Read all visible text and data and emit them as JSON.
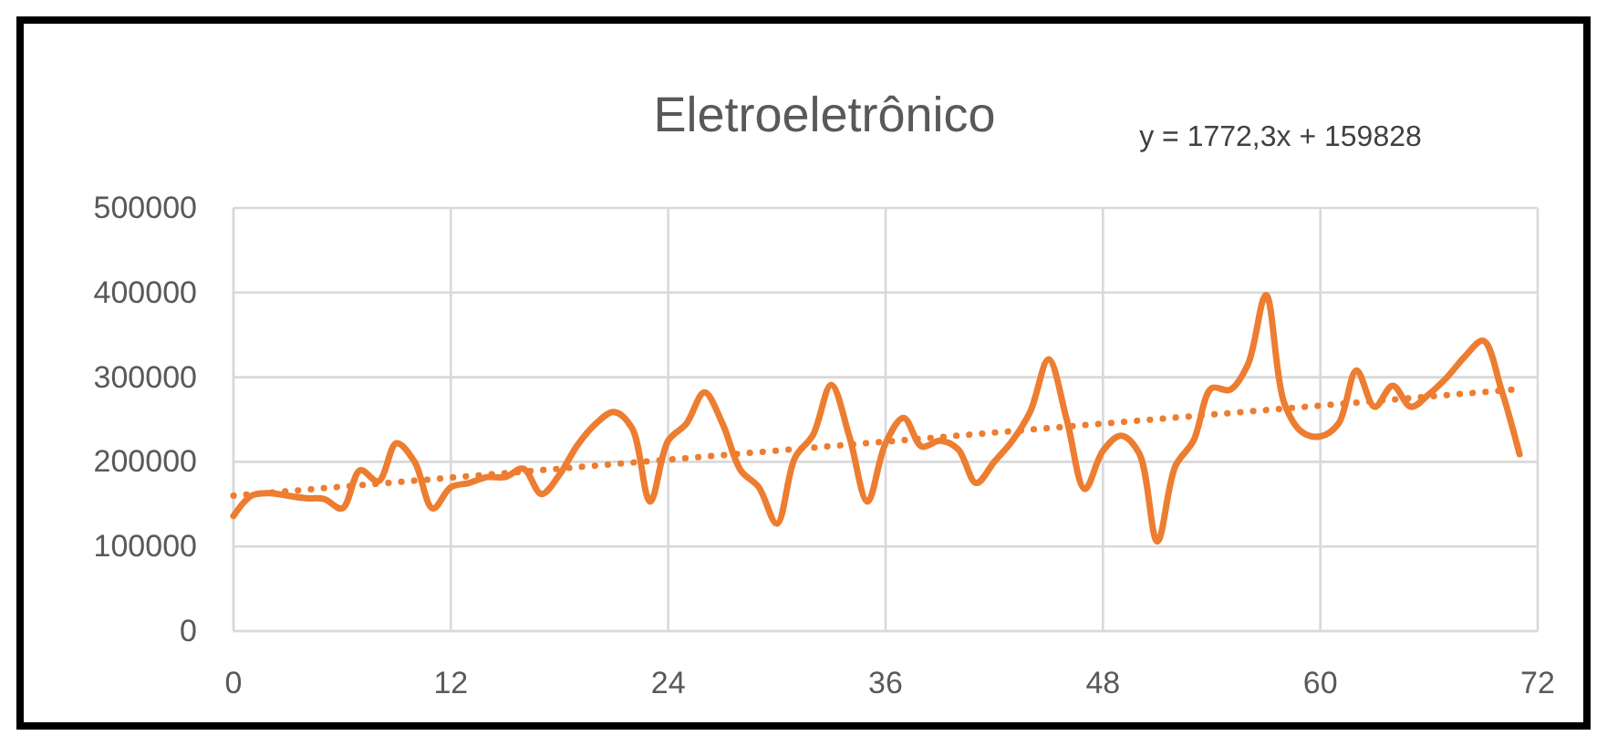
{
  "chart_data": {
    "type": "line",
    "title": "Eletroeletrônico",
    "annotations": [
      "y = 1772,3x + 159828"
    ],
    "x": [
      0,
      1,
      2,
      3,
      4,
      5,
      6,
      7,
      8,
      9,
      10,
      11,
      12,
      13,
      14,
      15,
      16,
      17,
      18,
      19,
      20,
      21,
      22,
      23,
      24,
      25,
      26,
      27,
      28,
      29,
      30,
      31,
      32,
      33,
      34,
      35,
      36,
      37,
      38,
      39,
      40,
      41,
      42,
      43,
      44,
      45,
      46,
      47,
      48,
      49,
      50,
      51,
      52,
      53,
      54,
      55,
      56,
      57,
      58,
      59,
      60,
      61,
      62,
      63,
      64,
      65,
      66,
      67,
      68,
      69,
      70,
      71
    ],
    "series": [
      {
        "color": "#ed7d31",
        "line_style": "solid",
        "values": [
          136000,
          160000,
          163000,
          160000,
          157000,
          156000,
          145000,
          190000,
          177000,
          222000,
          200000,
          145000,
          170000,
          175000,
          182000,
          182000,
          192000,
          162000,
          185000,
          220000,
          245000,
          259000,
          240000,
          153000,
          225000,
          245000,
          282000,
          245000,
          190000,
          170000,
          127000,
          205000,
          232000,
          291000,
          230000,
          153000,
          222000,
          252000,
          218000,
          225000,
          215000,
          175000,
          200000,
          225000,
          260000,
          321000,
          250000,
          168000,
          213000,
          231000,
          210000,
          106000,
          195000,
          225000,
          287000,
          285000,
          315000,
          397000,
          270000,
          235000,
          230000,
          245000,
          308000,
          265000,
          290000,
          265000,
          280000,
          300000,
          325000,
          343000,
          285000,
          209000
        ]
      },
      {
        "color": "#ed7d31",
        "line_style": "dotted",
        "x": [
          0,
          71
        ],
        "values": [
          160000,
          286000
        ]
      }
    ],
    "xlim": [
      0,
      72
    ],
    "xticks": [
      0,
      12,
      24,
      36,
      48,
      60,
      72
    ],
    "ylim": [
      0,
      500000
    ],
    "yticks": [
      0,
      100000,
      200000,
      300000,
      400000,
      500000
    ],
    "grid": true
  }
}
